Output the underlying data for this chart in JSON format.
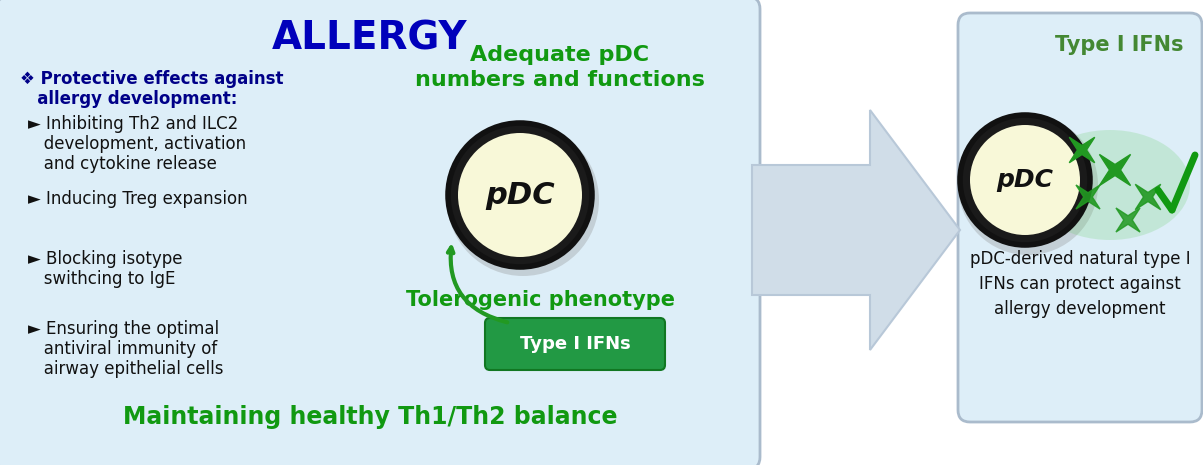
{
  "bg_color": "#ffffff",
  "left_box_bg": "#ddeef8",
  "left_box_edge": "#aabbcc",
  "right_box_bg": "#ddeef8",
  "right_box_edge": "#aabbcc",
  "arrow_color": "#d0dde8",
  "arrow_edge": "#b0bfcc",
  "title_text": "ALLERGY",
  "title_color": "#0000bb",
  "adequate_text": "Adequate pDC\nnumbers and functions",
  "adequate_color": "#119911",
  "tolerogenic_text": "Tolerogenic phenotype",
  "tolerogenic_color": "#119911",
  "maintaining_text": "Maintaining healthy Th1/Th2 balance",
  "maintaining_color": "#119911",
  "bullet_header_line1": "❖ Protective effects against",
  "bullet_header_line2": "   allergy development:",
  "bullet_color": "#000088",
  "bullets": [
    [
      "► Inhibiting Th2 and ILC2",
      "   development, activation",
      "   and cytokine release"
    ],
    [
      "► Inducing Treg expansion"
    ],
    [
      "► Blocking isotype",
      "   swithcing to IgE"
    ],
    [
      "► Ensuring the optimal",
      "   antiviral immunity of",
      "   airway epithelial cells"
    ]
  ],
  "bullet_text_color": "#111111",
  "pdc_circle_fill": "#f8f8d8",
  "pdc_circle_edge": "#111111",
  "pdc_text": "pDC",
  "type1_ifns_box_bg": "#229944",
  "type1_ifns_box_text": "Type I IFNs",
  "type1_ifns_box_text_color": "#ffffff",
  "right_type_ifns_text": "Type I IFNs",
  "right_type_ifns_color": "#448833",
  "right_bottom_text": "pDC-derived natural type I\nIFNs can protect against\nallergy development",
  "right_bottom_color": "#111111",
  "star_color": "#229922",
  "glow_color": "#66cc66",
  "check_color": "#119911",
  "arrow_shadow_color": "#b8c8d8"
}
